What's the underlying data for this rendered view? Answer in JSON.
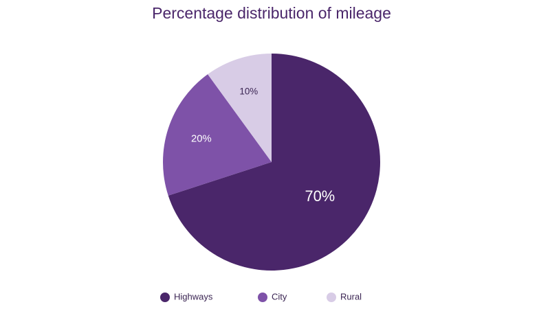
{
  "chart_data": {
    "type": "pie",
    "title": "Percentage distribution of mileage",
    "categories": [
      "Highways",
      "City",
      "Rural"
    ],
    "values": [
      70,
      20,
      10
    ],
    "value_labels": [
      "70%",
      "20%",
      "10%"
    ],
    "colors": [
      "#4a266a",
      "#7e52a8",
      "#d8cce6"
    ],
    "legend": "bottom"
  }
}
